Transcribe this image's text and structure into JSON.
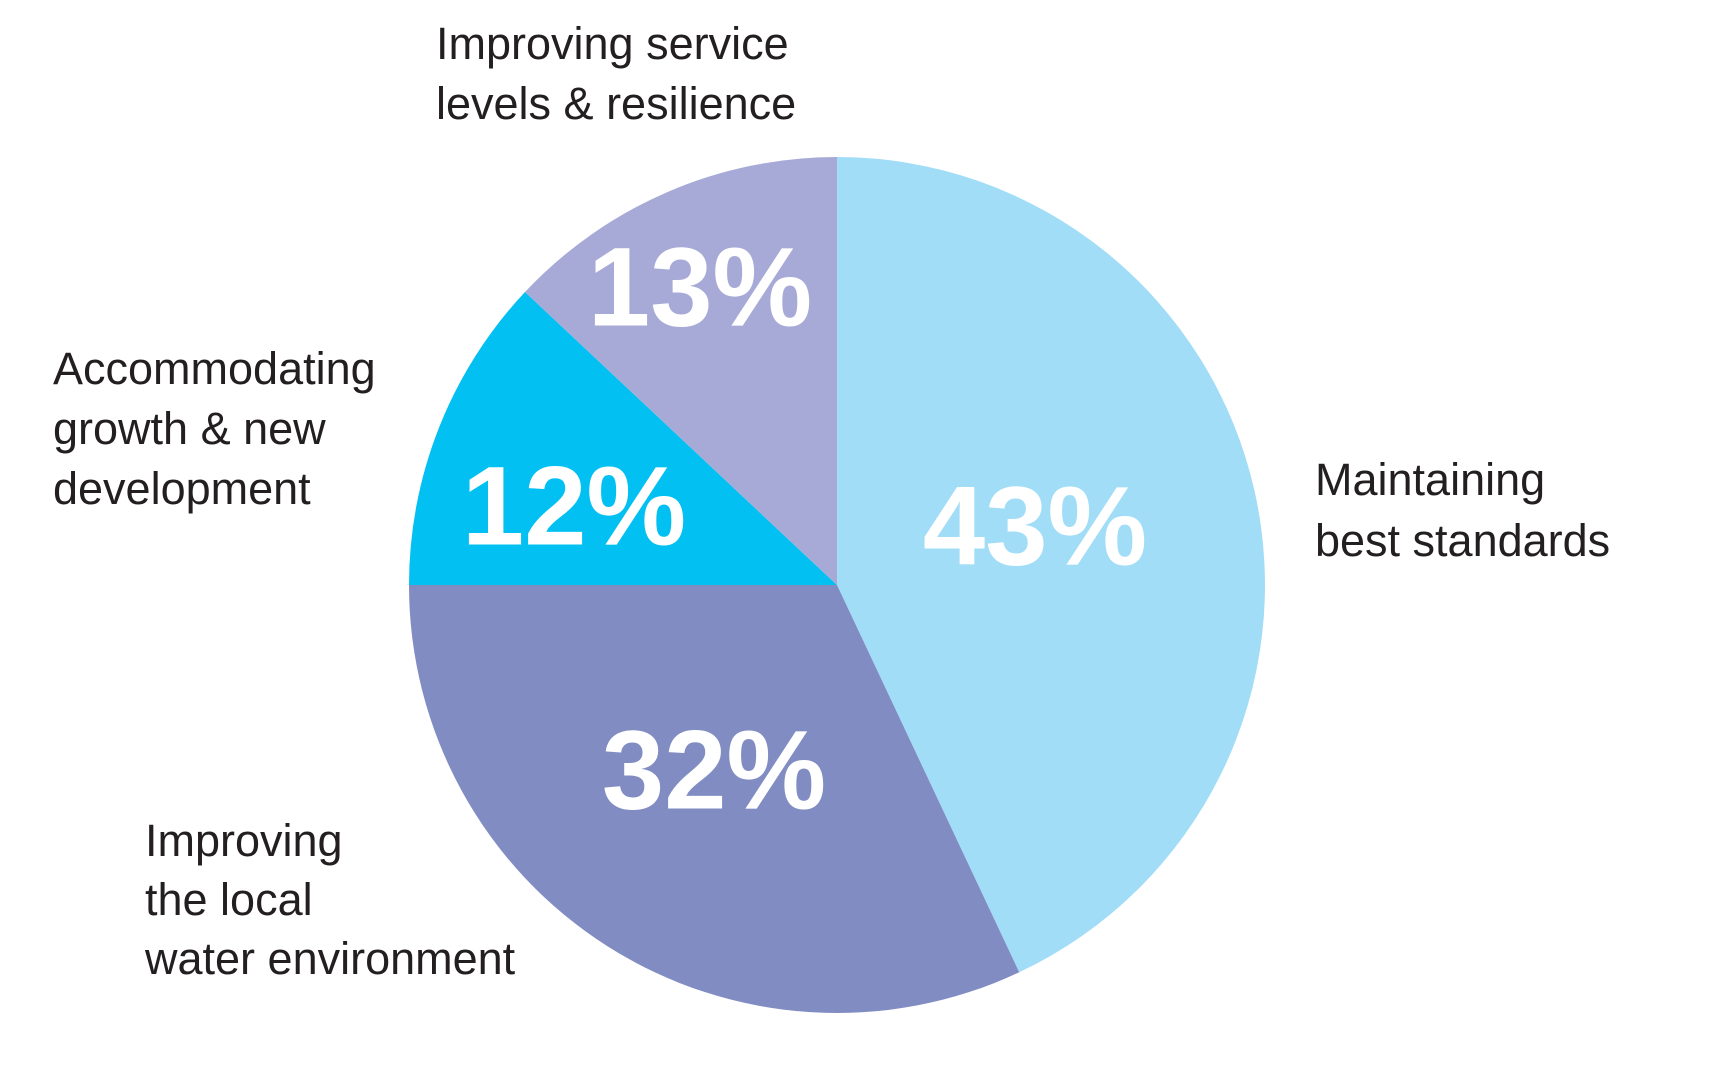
{
  "chart_data": {
    "type": "pie",
    "categories": [
      [
        "Maintaining",
        "best standards"
      ],
      [
        "Improving",
        "the local",
        "water environment"
      ],
      [
        "Accommodating",
        "growth & new",
        "development"
      ],
      [
        "Improving service",
        "levels & resilience"
      ]
    ],
    "values": [
      43,
      32,
      12,
      13
    ],
    "value_labels": [
      "43%",
      "32%",
      "12%",
      "13%"
    ],
    "colors": [
      "#a1ddf7",
      "#818cc3",
      "#02c0f1",
      "#a7aad7"
    ]
  }
}
